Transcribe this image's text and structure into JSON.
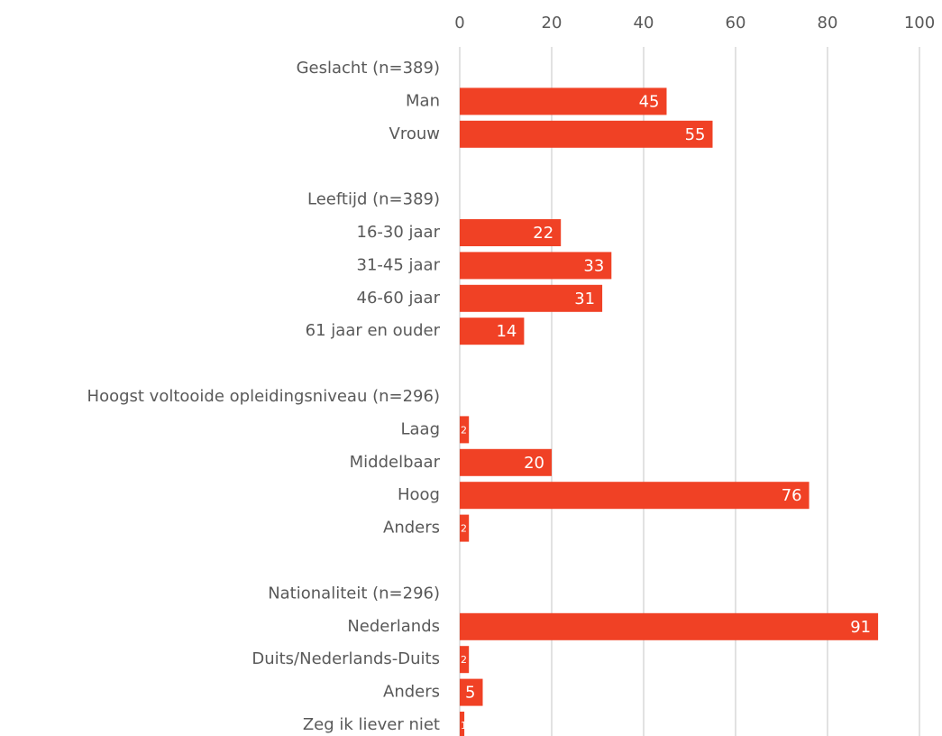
{
  "chart_data": {
    "type": "hbar",
    "categories": [
      "Geslacht (n=389)",
      "Man",
      "Vrouw",
      null,
      "Leeftijd (n=389)",
      "16-30 jaar",
      "31-45 jaar",
      "46-60 jaar",
      "61 jaar en ouder",
      null,
      "Hoogst voltooide opleidingsniveau (n=296)",
      "Laag",
      "Middelbaar",
      "Hoog",
      "Anders",
      null,
      "Nationaliteit (n=296)",
      "Nederlands",
      "Duits/Nederlands-Duits",
      "Anders",
      "Zeg ik liever niet"
    ],
    "values": [
      null,
      45,
      55,
      null,
      null,
      22,
      33,
      31,
      14,
      null,
      null,
      2,
      20,
      76,
      2,
      null,
      null,
      91,
      2,
      5,
      1
    ],
    "color": "#f04125",
    "xlim": [
      0,
      100
    ],
    "xticks": [
      0,
      20,
      40,
      60,
      80,
      100
    ],
    "grid": true
  }
}
